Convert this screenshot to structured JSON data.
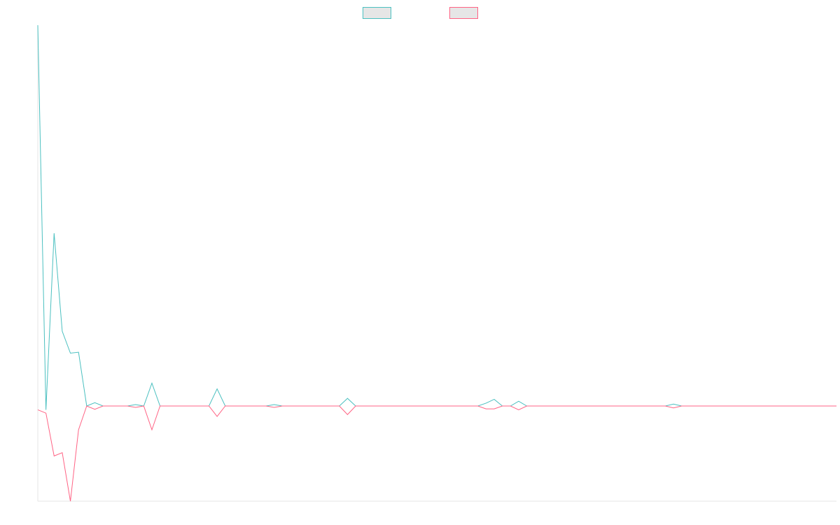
{
  "chart_data": {
    "type": "line",
    "title": "",
    "xlabel": "",
    "ylabel": "",
    "grid": false,
    "legend_position": "top-center",
    "x": [
      0,
      1,
      2,
      3,
      4,
      5,
      6,
      7,
      8,
      9,
      10,
      11,
      12,
      13,
      14,
      15,
      16,
      17,
      18,
      19,
      20,
      21,
      22,
      23,
      24,
      25,
      26,
      27,
      28,
      29,
      30,
      31,
      32,
      33,
      34,
      35,
      36,
      37,
      38,
      39,
      40,
      41,
      42,
      43,
      44,
      45,
      46,
      47,
      48,
      49,
      50,
      51,
      52,
      53,
      54,
      55,
      56,
      57,
      58,
      59,
      60,
      61,
      62,
      63,
      64,
      65,
      66,
      67,
      68,
      69,
      70,
      71,
      72,
      73,
      74,
      75,
      76,
      77,
      78,
      79,
      80,
      81,
      82,
      83,
      84,
      85,
      86,
      87,
      88,
      89,
      90,
      91,
      92,
      93,
      94,
      95,
      96,
      97,
      98
    ],
    "ylim": [
      -0.2,
      0.8
    ],
    "series": [
      {
        "name": "",
        "color": "#4bc0c0",
        "values": [
          0.8,
          -0.008,
          0.363,
          0.157,
          0.111,
          0.113,
          0,
          0.007,
          0,
          0,
          0,
          0,
          0.003,
          0,
          0.048,
          0,
          0,
          0,
          0,
          0,
          0,
          0,
          0.036,
          0,
          0,
          0,
          0,
          0,
          0,
          0.003,
          0,
          0,
          0,
          0,
          0,
          0,
          0,
          0,
          0.016,
          0,
          0,
          0,
          0,
          0,
          0,
          0,
          0,
          0,
          0,
          0,
          0,
          0,
          0,
          0,
          0,
          0.006,
          0.014,
          0,
          0,
          0.01,
          0,
          0,
          0,
          0,
          0,
          0,
          0,
          0,
          0,
          0,
          0,
          0,
          0,
          0,
          0,
          0,
          0,
          0,
          0.004,
          0,
          0,
          0,
          0,
          0,
          0,
          0,
          0,
          0,
          0,
          0,
          0,
          0,
          0,
          0,
          0,
          0,
          0,
          0,
          0
        ]
      },
      {
        "name": "",
        "color": "#ff6384",
        "values": [
          -0.008,
          -0.015,
          -0.105,
          -0.098,
          -0.2,
          -0.05,
          0,
          -0.007,
          0,
          0,
          0,
          0,
          -0.003,
          0,
          -0.05,
          0,
          0,
          0,
          0,
          0,
          0,
          0,
          -0.022,
          0,
          0,
          0,
          0,
          0,
          0,
          -0.003,
          0,
          0,
          0,
          0,
          0,
          0,
          0,
          0,
          -0.018,
          0,
          0,
          0,
          0,
          0,
          0,
          0,
          0,
          0,
          0,
          0,
          0,
          0,
          0,
          0,
          0,
          -0.006,
          -0.006,
          0,
          0,
          -0.008,
          0,
          0,
          0,
          0,
          0,
          0,
          0,
          0,
          0,
          0,
          0,
          0,
          0,
          0,
          0,
          0,
          0,
          0,
          -0.004,
          0,
          0,
          0,
          0,
          0,
          0,
          0,
          0,
          0,
          0,
          0,
          0,
          0,
          0,
          0,
          0,
          0,
          0,
          0,
          0
        ]
      }
    ]
  }
}
